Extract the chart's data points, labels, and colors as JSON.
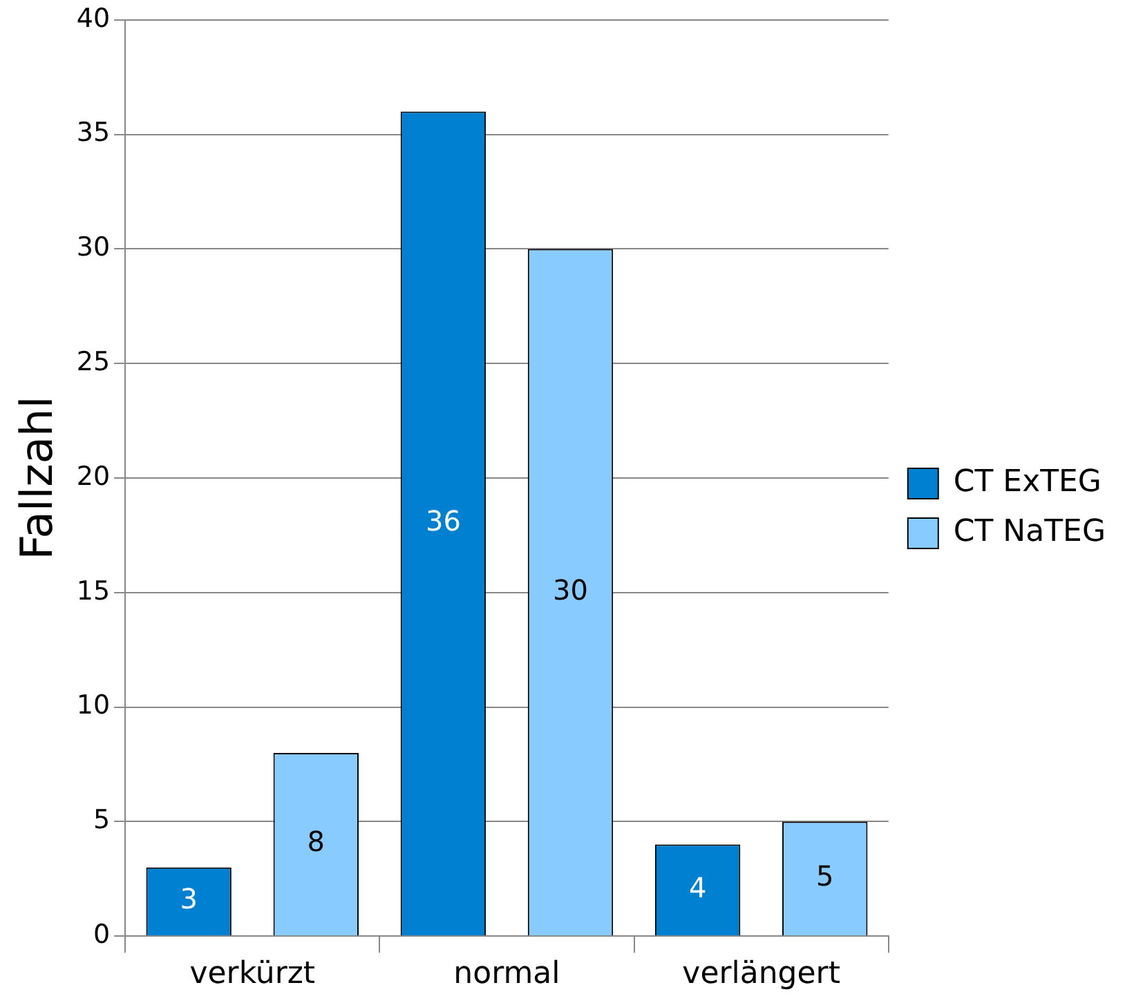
{
  "chart_data": {
    "type": "bar",
    "ylabel": "Fallzahl",
    "categories": [
      "verkürzt",
      "normal",
      "verlängert"
    ],
    "series": [
      {
        "name": "CT ExTEG",
        "color": "#0080d0",
        "values": [
          3,
          36,
          4
        ]
      },
      {
        "name": "CT NaTEG",
        "color": "#88ccff",
        "values": [
          8,
          30,
          5
        ]
      }
    ],
    "ylim": [
      0,
      40
    ],
    "yticks": [
      0,
      5,
      10,
      15,
      20,
      25,
      30,
      35,
      40
    ],
    "grid": "y",
    "legend": "right",
    "data_labels": true
  }
}
